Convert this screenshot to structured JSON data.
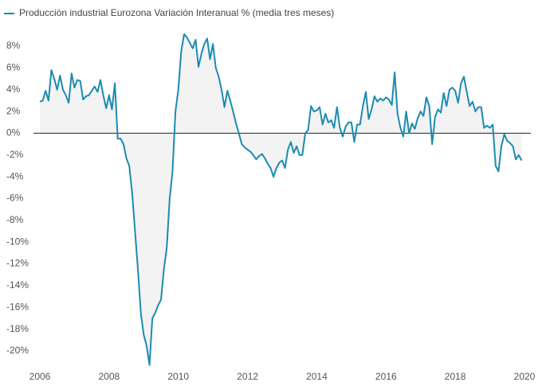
{
  "chart_data": {
    "type": "area-line",
    "legend_label": "Producción industrial Eurozona Variación Interanual % (media tres meses)",
    "color": "#1c8bb1",
    "fill": "#f3f3f3",
    "legend": "top-left",
    "grid": false,
    "xlim": [
      2006,
      2020
    ],
    "xticks": [
      2006,
      2008,
      2010,
      2012,
      2014,
      2016,
      2018,
      2020
    ],
    "ylim": [
      -21.5,
      9.5
    ],
    "yticks": [
      {
        "value": -20,
        "label": "-20%"
      },
      {
        "value": -18,
        "label": "-18%"
      },
      {
        "value": -16,
        "label": "-16%"
      },
      {
        "value": -14,
        "label": "-14%"
      },
      {
        "value": -12,
        "label": "-12%"
      },
      {
        "value": -10,
        "label": "-10%"
      },
      {
        "value": -8,
        "label": "-8%"
      },
      {
        "value": -6,
        "label": "-6%"
      },
      {
        "value": -4,
        "label": "-4%"
      },
      {
        "value": -2,
        "label": "-2%"
      },
      {
        "value": 0,
        "label": "0%"
      },
      {
        "value": 2,
        "label": "2%"
      },
      {
        "value": 4,
        "label": "4%"
      },
      {
        "value": 6,
        "label": "6%"
      },
      {
        "value": 8,
        "label": "8%"
      }
    ],
    "x": [
      2006,
      2006.083,
      2006.167,
      2006.25,
      2006.333,
      2006.417,
      2006.5,
      2006.583,
      2006.667,
      2006.75,
      2006.833,
      2006.917,
      2007,
      2007.083,
      2007.167,
      2007.25,
      2007.333,
      2007.417,
      2007.5,
      2007.583,
      2007.667,
      2007.75,
      2007.833,
      2007.917,
      2008,
      2008.083,
      2008.167,
      2008.25,
      2008.333,
      2008.417,
      2008.5,
      2008.583,
      2008.667,
      2008.75,
      2008.833,
      2008.917,
      2009,
      2009.083,
      2009.167,
      2009.25,
      2009.333,
      2009.417,
      2009.5,
      2009.583,
      2009.667,
      2009.75,
      2009.833,
      2009.917,
      2010,
      2010.083,
      2010.167,
      2010.25,
      2010.333,
      2010.417,
      2010.5,
      2010.583,
      2010.667,
      2010.75,
      2010.833,
      2010.917,
      2011,
      2011.083,
      2011.167,
      2011.25,
      2011.333,
      2011.417,
      2011.5,
      2011.583,
      2011.667,
      2011.75,
      2011.833,
      2011.917,
      2012,
      2012.083,
      2012.167,
      2012.25,
      2012.333,
      2012.417,
      2012.5,
      2012.583,
      2012.667,
      2012.75,
      2012.833,
      2012.917,
      2013,
      2013.083,
      2013.167,
      2013.25,
      2013.333,
      2013.417,
      2013.5,
      2013.583,
      2013.667,
      2013.75,
      2013.833,
      2013.917,
      2014,
      2014.083,
      2014.167,
      2014.25,
      2014.333,
      2014.417,
      2014.5,
      2014.583,
      2014.667,
      2014.75,
      2014.833,
      2014.917,
      2015,
      2015.083,
      2015.167,
      2015.25,
      2015.333,
      2015.417,
      2015.5,
      2015.583,
      2015.667,
      2015.75,
      2015.833,
      2015.917,
      2016,
      2016.083,
      2016.167,
      2016.25,
      2016.333,
      2016.417,
      2016.5,
      2016.583,
      2016.667,
      2016.75,
      2016.833,
      2016.917,
      2017,
      2017.083,
      2017.167,
      2017.25,
      2017.333,
      2017.417,
      2017.5,
      2017.583,
      2017.667,
      2017.75,
      2017.833,
      2017.917,
      2018,
      2018.083,
      2018.167,
      2018.25,
      2018.333,
      2018.417,
      2018.5,
      2018.583,
      2018.667,
      2018.75,
      2018.833,
      2018.917,
      2019,
      2019.083,
      2019.167,
      2019.25,
      2019.333,
      2019.417,
      2019.5,
      2019.583,
      2019.667,
      2019.75,
      2019.833,
      2019.917
    ],
    "values": [
      2.9,
      3.0,
      3.9,
      3.0,
      5.8,
      5.0,
      4.0,
      5.3,
      4.0,
      3.5,
      2.8,
      5.5,
      4.2,
      4.9,
      4.8,
      3.1,
      3.4,
      3.5,
      3.9,
      4.3,
      3.8,
      4.9,
      3.5,
      2.3,
      3.5,
      2.2,
      4.6,
      -0.5,
      -0.5,
      -1.0,
      -2.3,
      -3.0,
      -5.5,
      -9.0,
      -12.5,
      -16.5,
      -18.5,
      -19.5,
      -21.3,
      -17.0,
      -16.5,
      -15.8,
      -15.3,
      -12.5,
      -10.5,
      -6.0,
      -3.5,
      2.0,
      4.0,
      7.5,
      9.1,
      8.8,
      8.3,
      7.8,
      8.6,
      6.1,
      7.3,
      8.2,
      8.7,
      6.8,
      8.2,
      6.0,
      5.2,
      4.0,
      2.4,
      3.9,
      3.0,
      2.0,
      0.9,
      0.0,
      -1.0,
      -1.3,
      -1.5,
      -1.7,
      -2.0,
      -2.4,
      -2.1,
      -1.9,
      -2.3,
      -2.8,
      -3.2,
      -4.0,
      -3.2,
      -2.7,
      -2.5,
      -3.2,
      -1.5,
      -0.8,
      -1.8,
      -1.2,
      -2.0,
      -2.0,
      0.0,
      0.3,
      2.5,
      2.0,
      2.1,
      2.4,
      0.8,
      1.8,
      1.0,
      1.2,
      0.5,
      2.4,
      0.5,
      -0.3,
      0.6,
      1.0,
      1.0,
      -0.8,
      0.8,
      0.8,
      2.5,
      3.8,
      1.3,
      2.2,
      3.4,
      2.9,
      3.2,
      3.0,
      3.3,
      3.1,
      2.6,
      5.6,
      1.8,
      0.5,
      -0.3,
      2.0,
      0.0,
      0.9,
      0.4,
      1.4,
      2.0,
      1.6,
      3.3,
      2.5,
      -1.0,
      1.5,
      2.2,
      1.9,
      3.7,
      2.5,
      4.0,
      4.2,
      3.9,
      2.8,
      4.6,
      5.2,
      3.8,
      2.5,
      2.9,
      2.0,
      2.4,
      2.4,
      0.5,
      0.7,
      0.5,
      0.8,
      -3.0,
      -3.5,
      -1.2,
      -0.1,
      -0.7,
      -0.9,
      -1.2,
      -2.4,
      -2.0,
      -2.5
    ]
  }
}
